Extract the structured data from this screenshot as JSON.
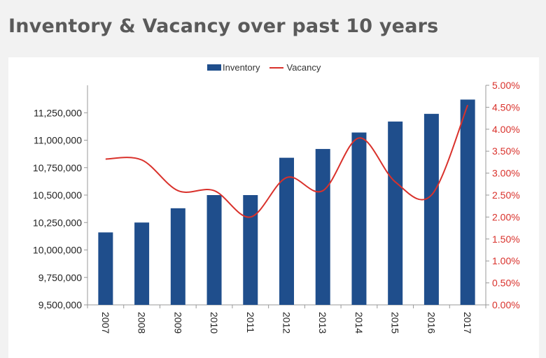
{
  "title": "Inventory & Vacancy over past 10 years",
  "colors": {
    "inventory": "#1f4e8c",
    "vacancy": "#d9312b",
    "axis": "#999999",
    "text": "#222222"
  },
  "chart_data": {
    "type": "bar+line",
    "categories": [
      "2007",
      "2008",
      "2009",
      "2010",
      "2011",
      "2012",
      "2013",
      "2014",
      "2015",
      "2016",
      "2017"
    ],
    "series": [
      {
        "name": "Inventory",
        "type": "bar",
        "axis": "left",
        "values": [
          10160000,
          10250000,
          10380000,
          10500000,
          10500000,
          10840000,
          10920000,
          11070000,
          11170000,
          11240000,
          11370000
        ]
      },
      {
        "name": "Vacancy",
        "type": "line",
        "axis": "right",
        "smooth": true,
        "values": [
          0.0332,
          0.033,
          0.026,
          0.026,
          0.02,
          0.029,
          0.026,
          0.038,
          0.028,
          0.025,
          0.0455
        ]
      }
    ],
    "y_left": {
      "range": [
        9500000,
        11500000
      ],
      "tick_labels": [
        "9,500,000",
        "9,750,000",
        "10,000,000",
        "10,250,000",
        "10,500,000",
        "10,750,000",
        "11,000,000",
        "11,250,000"
      ]
    },
    "y_right": {
      "range": [
        0,
        0.05
      ],
      "tick_labels": [
        "0.00%",
        "0.50%",
        "1.00%",
        "1.50%",
        "2.00%",
        "2.50%",
        "3.00%",
        "3.50%",
        "4.00%",
        "4.50%",
        "5.00%"
      ]
    },
    "legend_position": "top",
    "grid": false
  }
}
